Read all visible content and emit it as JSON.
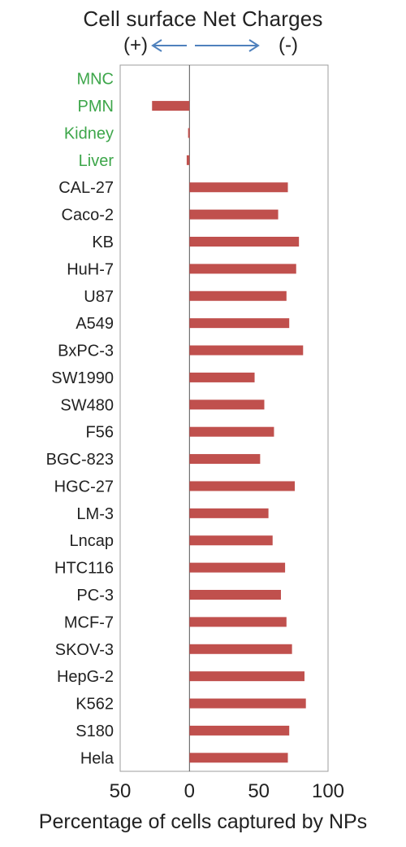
{
  "header": {
    "title": "Cell surface  Net Charges",
    "left_sign": "(+)",
    "right_sign": "(-)"
  },
  "colors": {
    "bar": "#C0504D",
    "normal_label": "#3DA64A",
    "cancer_label": "#222222",
    "arrow": "#4F81BD",
    "frame": "#9E9E9E"
  },
  "chart_data": {
    "type": "bar",
    "orientation": "horizontal",
    "xlabel": "Percentage of cells captured by NPs",
    "xlim": [
      -50,
      100
    ],
    "xticks": [
      -50,
      0,
      50,
      100
    ],
    "xtick_labels": [
      "50",
      "0",
      "50",
      "100"
    ],
    "grid": false,
    "categories": [
      "MNC",
      "PMN",
      "Kidney",
      "Liver",
      "CAL-27",
      "Caco-2",
      "KB",
      "HuH-7",
      "U87",
      "A549",
      "BxPC-3",
      "SW1990",
      "SW480",
      "F56",
      "BGC-823",
      "HGC-27",
      "LM-3",
      "Lncap",
      "HTC116",
      "PC-3",
      "MCF-7",
      "SKOV-3",
      "HepG-2",
      "K562",
      "S180",
      "Hela"
    ],
    "label_colors": [
      "normal",
      "normal",
      "normal",
      "normal",
      "cancer",
      "cancer",
      "cancer",
      "cancer",
      "cancer",
      "cancer",
      "cancer",
      "cancer",
      "cancer",
      "cancer",
      "cancer",
      "cancer",
      "cancer",
      "cancer",
      "cancer",
      "cancer",
      "cancer",
      "cancer",
      "cancer",
      "cancer",
      "cancer",
      "cancer"
    ],
    "values": [
      0,
      -27,
      -1,
      -2,
      71,
      64,
      79,
      77,
      70,
      72,
      82,
      47,
      54,
      61,
      51,
      76,
      57,
      60,
      69,
      66,
      70,
      74,
      83,
      84,
      72,
      71
    ]
  }
}
